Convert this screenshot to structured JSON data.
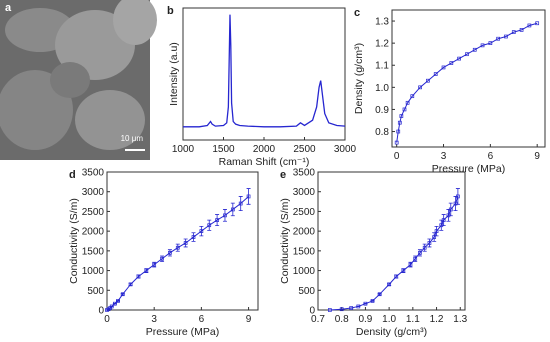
{
  "image": {
    "label": "a",
    "scale_bar": "10 μm"
  },
  "chart_data": [
    {
      "type": "line",
      "label": "b",
      "xlabel": "Raman Shift (cm⁻¹)",
      "ylabel": "Intensity (a.u)",
      "color": "#2626d0",
      "x": [
        1000,
        1100,
        1200,
        1300,
        1340,
        1360,
        1400,
        1500,
        1540,
        1560,
        1570,
        1580,
        1590,
        1600,
        1620,
        1650,
        1700,
        1800,
        2000,
        2200,
        2400,
        2450,
        2500,
        2600,
        2650,
        2680,
        2700,
        2720,
        2750,
        2800,
        2900,
        3000
      ],
      "values": [
        10,
        10,
        10,
        11,
        14,
        12,
        10.5,
        11,
        13,
        25,
        60,
        95,
        72,
        28,
        14,
        12,
        11,
        10.5,
        10,
        10,
        10.5,
        13,
        11,
        15,
        25,
        40,
        45,
        35,
        20,
        13,
        11,
        10.5
      ],
      "xlim": [
        1000,
        3000
      ],
      "ylim": [
        0,
        100
      ],
      "xticks": [
        1000,
        1500,
        2000,
        2500,
        3000
      ]
    },
    {
      "type": "scatter-line",
      "label": "c",
      "xlabel": "Pressure (MPa)",
      "ylabel": "Density (g/cm³)",
      "color": "#2626d0",
      "x": [
        0,
        0.1,
        0.2,
        0.3,
        0.5,
        0.7,
        1,
        1.5,
        2,
        2.5,
        3,
        3.5,
        4,
        4.5,
        5,
        5.5,
        6,
        6.5,
        7,
        7.5,
        8,
        8.5,
        9
      ],
      "values": [
        0.75,
        0.8,
        0.84,
        0.87,
        0.9,
        0.93,
        0.96,
        1.0,
        1.03,
        1.06,
        1.09,
        1.11,
        1.13,
        1.15,
        1.17,
        1.19,
        1.2,
        1.22,
        1.23,
        1.25,
        1.26,
        1.28,
        1.29
      ],
      "xlim": [
        -0.3,
        9.5
      ],
      "ylim": [
        0.73,
        1.35
      ],
      "xticks": [
        0,
        3,
        6,
        9
      ],
      "yticks": [
        0.8,
        0.9,
        {
          "value": 1,
          "label": "1.0"
        },
        1.1,
        1.2,
        1.3
      ]
    },
    {
      "type": "errorbar",
      "label": "d",
      "xlabel": "Pressure (MPa)",
      "ylabel": "Conductivity (S/m)",
      "color": "#2626d0",
      "x": [
        0,
        0.1,
        0.2,
        0.3,
        0.5,
        0.7,
        1,
        1.5,
        2,
        2.5,
        3,
        3.5,
        4,
        4.5,
        5,
        5.5,
        6,
        6.5,
        7,
        7.5,
        8,
        8.5,
        9
      ],
      "values": [
        0,
        20,
        50,
        90,
        160,
        230,
        400,
        650,
        850,
        1000,
        1150,
        1300,
        1450,
        1580,
        1700,
        1850,
        2000,
        2150,
        2280,
        2400,
        2550,
        2700,
        2880
      ],
      "errors": [
        0,
        2,
        4,
        5,
        8,
        10,
        20,
        30,
        40,
        50,
        60,
        70,
        80,
        90,
        100,
        110,
        120,
        130,
        140,
        150,
        160,
        180,
        200
      ],
      "xlim": [
        0,
        9.6
      ],
      "ylim": [
        0,
        3500
      ],
      "xticks": [
        0,
        3,
        6,
        9
      ],
      "yticks": [
        0,
        500,
        1000,
        1500,
        2000,
        2500,
        3000,
        3500
      ]
    },
    {
      "type": "errorbar",
      "label": "e",
      "xlabel": "Density (g/cm³)",
      "ylabel": "Conductivity (S/m)",
      "color": "#2626d0",
      "x": [
        0.75,
        0.8,
        0.84,
        0.87,
        0.9,
        0.93,
        0.96,
        1.0,
        1.03,
        1.06,
        1.09,
        1.11,
        1.13,
        1.15,
        1.17,
        1.19,
        1.2,
        1.22,
        1.23,
        1.25,
        1.26,
        1.28,
        1.29
      ],
      "values": [
        0,
        20,
        50,
        90,
        160,
        230,
        400,
        650,
        850,
        1000,
        1150,
        1300,
        1450,
        1580,
        1700,
        1850,
        2000,
        2150,
        2280,
        2400,
        2550,
        2700,
        2880
      ],
      "errors": [
        0,
        2,
        4,
        5,
        8,
        10,
        20,
        30,
        40,
        50,
        60,
        70,
        80,
        90,
        100,
        110,
        120,
        130,
        140,
        150,
        160,
        180,
        200
      ],
      "xlim": [
        0.7,
        1.32
      ],
      "ylim": [
        0,
        3500
      ],
      "xticks": [
        0.7,
        0.8,
        0.9,
        {
          "value": 1,
          "label": "1.0"
        },
        1.1,
        1.2,
        1.3
      ],
      "yticks": [
        0,
        500,
        1000,
        1500,
        2000,
        2500,
        3000,
        3500
      ]
    }
  ]
}
